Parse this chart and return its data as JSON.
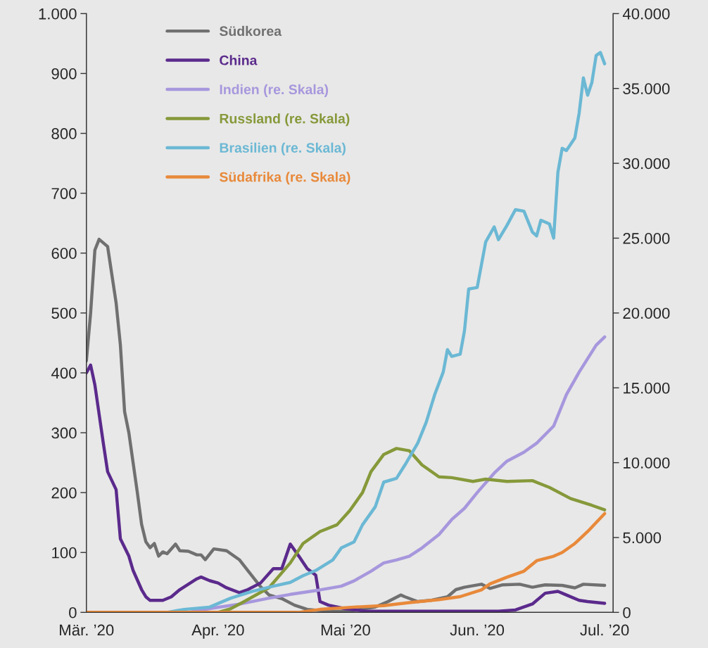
{
  "chart_data": {
    "type": "line",
    "xlim": [
      "2020-03-01",
      "2020-07-03"
    ],
    "xticks": [
      {
        "value": "2020-03-01",
        "label": "Mär. ’20"
      },
      {
        "value": "2020-04-01",
        "label": "Apr. ’20"
      },
      {
        "value": "2020-05-01",
        "label": "Mai ’20"
      },
      {
        "value": "2020-06-01",
        "label": "Jun. ’20"
      },
      {
        "value": "2020-07-01",
        "label": "Jul. ’20"
      }
    ],
    "ylim": [
      0,
      1000
    ],
    "yticks": [
      0,
      100,
      200,
      300,
      400,
      500,
      600,
      700,
      800,
      900,
      {
        "value": 1000,
        "label": "1.000"
      }
    ],
    "y2lim": [
      0,
      40000
    ],
    "y2ticks": [
      0,
      {
        "value": 5000,
        "label": "5.000"
      },
      {
        "value": 10000,
        "label": "10.000"
      },
      {
        "value": 15000,
        "label": "15.000"
      },
      {
        "value": 20000,
        "label": "20.000"
      },
      {
        "value": 25000,
        "label": "25.000"
      },
      {
        "value": 30000,
        "label": "30.000"
      },
      {
        "value": 35000,
        "label": "35.000"
      },
      {
        "value": 40000,
        "label": "40.000"
      }
    ],
    "grid": false,
    "legend": "top left",
    "series": [
      {
        "name": "Südkorea",
        "color": "#707070",
        "x": [
          "2020-03-01",
          "2020-03-02",
          "2020-03-03",
          "2020-03-04",
          "2020-03-06",
          "2020-03-08",
          "2020-03-09",
          "2020-03-10",
          "2020-03-11",
          "2020-03-13",
          "2020-03-14",
          "2020-03-15",
          "2020-03-16",
          "2020-03-17",
          "2020-03-18",
          "2020-03-19",
          "2020-03-20",
          "2020-03-22",
          "2020-03-23",
          "2020-03-25",
          "2020-03-27",
          "2020-03-28",
          "2020-03-29",
          "2020-03-31",
          "2020-04-03",
          "2020-04-06",
          "2020-04-08",
          "2020-04-11",
          "2020-04-13",
          "2020-04-16",
          "2020-04-19",
          "2020-04-22",
          "2020-04-27",
          "2020-05-02",
          "2020-05-08",
          "2020-05-11",
          "2020-05-14",
          "2020-05-15",
          "2020-05-18",
          "2020-05-21",
          "2020-05-25",
          "2020-05-27",
          "2020-05-29",
          "2020-06-02",
          "2020-06-04",
          "2020-06-07",
          "2020-06-11",
          "2020-06-14",
          "2020-06-17",
          "2020-06-21",
          "2020-06-24",
          "2020-06-26",
          "2020-07-01"
        ],
        "values": [
          420,
          500,
          605,
          623,
          611,
          517,
          447,
          335,
          300,
          200,
          147,
          118,
          108,
          115,
          94,
          101,
          98,
          114,
          103,
          102,
          96,
          96,
          88,
          106,
          103,
          88,
          70,
          43,
          29,
          23,
          12,
          5,
          2,
          2,
          9,
          18,
          29,
          26,
          18,
          20,
          26,
          38,
          42,
          47,
          40,
          46,
          47,
          42,
          46,
          45,
          41,
          47,
          45
        ]
      },
      {
        "name": "China",
        "color": "#5b2a8c",
        "x": [
          "2020-03-01",
          "2020-03-02",
          "2020-03-03",
          "2020-03-05",
          "2020-03-06",
          "2020-03-08",
          "2020-03-09",
          "2020-03-11",
          "2020-03-12",
          "2020-03-14",
          "2020-03-15",
          "2020-03-16",
          "2020-03-19",
          "2020-03-21",
          "2020-03-23",
          "2020-03-25",
          "2020-03-27",
          "2020-03-28",
          "2020-03-30",
          "2020-04-01",
          "2020-04-03",
          "2020-04-06",
          "2020-04-08",
          "2020-04-11",
          "2020-04-14",
          "2020-04-16",
          "2020-04-18",
          "2020-04-20",
          "2020-04-22",
          "2020-04-24",
          "2020-04-25",
          "2020-04-27",
          "2020-05-01",
          "2020-05-06",
          "2020-05-22",
          "2020-06-06",
          "2020-06-10",
          "2020-06-14",
          "2020-06-17",
          "2020-06-20",
          "2020-06-22",
          "2020-06-25",
          "2020-06-27",
          "2020-07-01"
        ],
        "values": [
          400,
          413,
          380,
          282,
          235,
          205,
          123,
          94,
          70,
          38,
          26,
          20,
          20,
          26,
          38,
          47,
          56,
          59,
          53,
          49,
          41,
          33,
          38,
          49,
          73,
          73,
          114,
          94,
          73,
          62,
          18,
          12,
          6,
          2,
          2,
          2,
          4,
          14,
          32,
          35,
          29,
          20,
          18,
          15
        ]
      },
      {
        "name": "Indien (re. Skala)",
        "color": "#a797dd",
        "axis": "y2",
        "x": [
          "2020-03-01",
          "2020-03-25",
          "2020-03-30",
          "2020-04-06",
          "2020-04-13",
          "2020-04-18",
          "2020-04-25",
          "2020-04-30",
          "2020-05-03",
          "2020-05-07",
          "2020-05-10",
          "2020-05-13",
          "2020-05-16",
          "2020-05-19",
          "2020-05-23",
          "2020-05-26",
          "2020-05-29",
          "2020-06-01",
          "2020-06-05",
          "2020-06-08",
          "2020-06-12",
          "2020-06-15",
          "2020-06-19",
          "2020-06-22",
          "2020-06-25",
          "2020-06-29",
          "2020-07-01"
        ],
        "values": [
          0,
          0,
          250,
          550,
          950,
          1200,
          1500,
          1750,
          2100,
          2750,
          3300,
          3500,
          3750,
          4300,
          5200,
          6200,
          6950,
          8000,
          9300,
          10100,
          10700,
          11300,
          12450,
          14550,
          16050,
          17850,
          18400
        ]
      },
      {
        "name": "Russland (re. Skala)",
        "color": "#86993a",
        "axis": "y2",
        "x": [
          "2020-03-01",
          "2020-04-01",
          "2020-04-04",
          "2020-04-07",
          "2020-04-13",
          "2020-04-18",
          "2020-04-21",
          "2020-04-25",
          "2020-04-29",
          "2020-05-02",
          "2020-05-05",
          "2020-05-07",
          "2020-05-10",
          "2020-05-13",
          "2020-05-16",
          "2020-05-19",
          "2020-05-23",
          "2020-05-26",
          "2020-05-31",
          "2020-06-03",
          "2020-06-08",
          "2020-06-14",
          "2020-06-18",
          "2020-06-23",
          "2020-06-28",
          "2020-07-01"
        ],
        "values": [
          0,
          0,
          250,
          700,
          1650,
          3300,
          4600,
          5400,
          5850,
          6800,
          8000,
          9400,
          10550,
          10950,
          10800,
          9850,
          9050,
          9000,
          8750,
          8900,
          8750,
          8800,
          8350,
          7600,
          7150,
          6850
        ]
      },
      {
        "name": "Brasilien (re. Skala)",
        "color": "#6bb8d4",
        "axis": "y2",
        "x": [
          "2020-03-01",
          "2020-03-20",
          "2020-03-24",
          "2020-03-30",
          "2020-04-04",
          "2020-04-09",
          "2020-04-14",
          "2020-04-18",
          "2020-04-21",
          "2020-04-24",
          "2020-04-28",
          "2020-04-30",
          "2020-05-03",
          "2020-05-05",
          "2020-05-08",
          "2020-05-10",
          "2020-05-13",
          "2020-05-15",
          "2020-05-18",
          "2020-05-20",
          "2020-05-22",
          "2020-05-24",
          "2020-05-25",
          "2020-05-26",
          "2020-05-28",
          "2020-05-29",
          "2020-05-30",
          "2020-06-01",
          "2020-06-03",
          "2020-06-05",
          "2020-06-06",
          "2020-06-08",
          "2020-06-10",
          "2020-06-12",
          "2020-06-14",
          "2020-06-15",
          "2020-06-16",
          "2020-06-18",
          "2020-06-19",
          "2020-06-20",
          "2020-06-21",
          "2020-06-22",
          "2020-06-24",
          "2020-06-25",
          "2020-06-26",
          "2020-06-27",
          "2020-06-28",
          "2020-06-29",
          "2020-06-30",
          "2020-07-01"
        ],
        "values": [
          0,
          0,
          200,
          350,
          950,
          1400,
          1750,
          2000,
          2450,
          2800,
          3500,
          4300,
          4700,
          5850,
          7050,
          8700,
          8950,
          9850,
          11300,
          12700,
          14550,
          16050,
          17550,
          17100,
          17250,
          18800,
          21600,
          21700,
          24750,
          25750,
          24900,
          25850,
          26900,
          26800,
          25400,
          25150,
          26200,
          25950,
          25000,
          29400,
          31000,
          30850,
          31700,
          33350,
          35700,
          34550,
          35400,
          37200,
          37400,
          36650
        ]
      },
      {
        "name": "Südafrika (re. Skala)",
        "color": "#e8893a",
        "axis": "y2",
        "x": [
          "2020-03-01",
          "2020-04-20",
          "2020-04-25",
          "2020-05-03",
          "2020-05-10",
          "2020-05-16",
          "2020-05-23",
          "2020-05-28",
          "2020-06-02",
          "2020-06-04",
          "2020-06-08",
          "2020-06-12",
          "2020-06-15",
          "2020-06-19",
          "2020-06-21",
          "2020-06-24",
          "2020-06-27",
          "2020-06-29",
          "2020-07-01"
        ],
        "values": [
          0,
          0,
          200,
          350,
          450,
          650,
          850,
          1050,
          1500,
          1900,
          2350,
          2750,
          3450,
          3750,
          4000,
          4600,
          5400,
          6000,
          6600
        ]
      }
    ]
  }
}
